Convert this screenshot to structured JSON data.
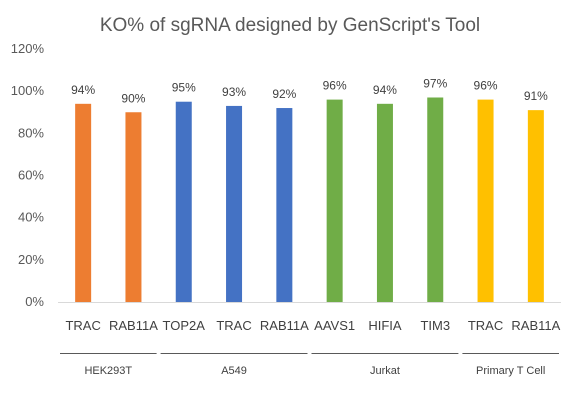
{
  "chart_data": {
    "type": "bar",
    "title": "KO% of sgRNA designed by GenScript's Tool",
    "y_tick_labels": [
      "0%",
      "20%",
      "40%",
      "60%",
      "80%",
      "100%",
      "120%"
    ],
    "ylim": [
      0,
      120
    ],
    "grid": false,
    "legend": "none",
    "categories": [
      "TRAC",
      "RAB11A",
      "TOP2A",
      "TRAC",
      "RAB11A",
      "AAVS1",
      "HIFIA",
      "TIM3",
      "TRAC",
      "RAB11A"
    ],
    "values": [
      94,
      90,
      95,
      93,
      92,
      96,
      94,
      97,
      96,
      91
    ],
    "data_labels": [
      "94%",
      "90%",
      "95%",
      "93%",
      "92%",
      "96%",
      "94%",
      "97%",
      "96%",
      "91%"
    ],
    "groups": [
      {
        "name": "HEK293T",
        "start": 0,
        "count": 2,
        "color": "#ED7D31"
      },
      {
        "name": "A549",
        "start": 2,
        "count": 3,
        "color": "#4472C4"
      },
      {
        "name": "Jurkat",
        "start": 5,
        "count": 3,
        "color": "#70AD47"
      },
      {
        "name": "Primary T Cell",
        "start": 8,
        "count": 2,
        "color": "#FFC000"
      }
    ]
  }
}
